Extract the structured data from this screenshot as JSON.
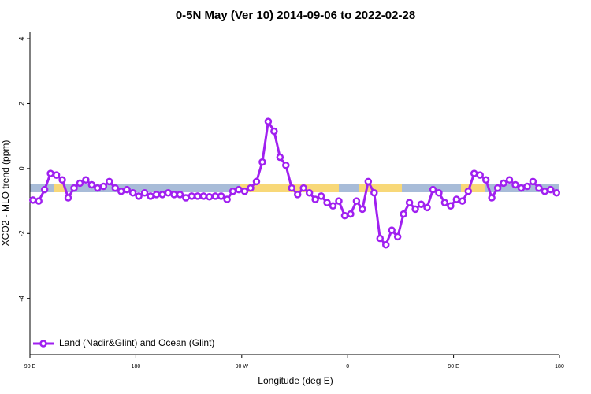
{
  "chart_data": {
    "type": "line",
    "title": "0-5N May (Ver 10)   2014-09-06 to 2022-02-28",
    "x_label": "Longitude (deg E)",
    "y_label": "XCO2 - MLO trend (ppm)",
    "xlim": [
      90,
      540
    ],
    "ylim": [
      -5.73,
      4.22
    ],
    "xticks": [
      {
        "value": 90,
        "label": "90 E"
      },
      180,
      {
        "value": 270,
        "label": "90 W"
      },
      {
        "value": 360,
        "label": "0"
      },
      {
        "value": 450,
        "label": "90 E"
      },
      {
        "value": 540,
        "label": "180"
      }
    ],
    "yticks": [
      -4,
      -2,
      0,
      2,
      4
    ],
    "legend": "bottom-left",
    "x": [
      92.5,
      97.5,
      102.5,
      107.5,
      112.5,
      117.5,
      122.5,
      127.5,
      132.5,
      137.5,
      142.5,
      147.5,
      152.5,
      157.5,
      162.5,
      167.5,
      172.5,
      177.5,
      182.5,
      187.5,
      192.5,
      197.5,
      202.5,
      207.5,
      212.5,
      217.5,
      222.5,
      227.5,
      232.5,
      237.5,
      242.5,
      247.5,
      252.5,
      257.5,
      262.5,
      267.5,
      272.5,
      277.5,
      282.5,
      287.5,
      292.5,
      297.5,
      302.5,
      307.5,
      312.5,
      317.5,
      322.5,
      327.5,
      332.5,
      337.5,
      342.5,
      347.5,
      352.5,
      357.5,
      362.5,
      367.5,
      372.5,
      377.5,
      382.5,
      387.5,
      392.5,
      397.5,
      402.5,
      407.5,
      412.5,
      417.5,
      422.5,
      427.5,
      432.5,
      437.5,
      442.5,
      447.5,
      452.5,
      457.5,
      462.5,
      467.5,
      472.5,
      477.5,
      482.5,
      487.5,
      492.5,
      497.5,
      502.5,
      507.5,
      512.5,
      517.5,
      522.5,
      527.5,
      532.5,
      537.5
    ],
    "series": [
      {
        "name": "Land (Nadir&Glint) and Ocean (Glint)",
        "color": "#a020f0",
        "values": [
          -0.97,
          -1.0,
          -0.65,
          -0.15,
          -0.2,
          -0.35,
          -0.9,
          -0.6,
          -0.45,
          -0.35,
          -0.5,
          -0.6,
          -0.55,
          -0.4,
          -0.6,
          -0.7,
          -0.65,
          -0.75,
          -0.85,
          -0.75,
          -0.85,
          -0.8,
          -0.8,
          -0.75,
          -0.8,
          -0.8,
          -0.9,
          -0.85,
          -0.85,
          -0.85,
          -0.87,
          -0.85,
          -0.85,
          -0.95,
          -0.7,
          -0.65,
          -0.7,
          -0.6,
          -0.4,
          0.2,
          1.45,
          1.15,
          0.35,
          0.1,
          -0.6,
          -0.8,
          -0.6,
          -0.75,
          -0.95,
          -0.85,
          -1.05,
          -1.15,
          -1.0,
          -1.45,
          -1.4,
          -1.0,
          -1.25,
          -0.4,
          -0.75,
          -2.15,
          -2.35,
          -1.9,
          -2.1,
          -1.4,
          -1.05,
          -1.25,
          -1.1,
          -1.2,
          -0.65,
          -0.75,
          -1.05,
          -1.15,
          -0.95,
          -1.0,
          -0.7,
          -0.15,
          -0.2,
          -0.35,
          -0.9,
          -0.6,
          -0.45,
          -0.35,
          -0.5,
          -0.6,
          -0.55,
          -0.4,
          -0.6,
          -0.7,
          -0.65,
          -0.75
        ]
      }
    ]
  }
}
